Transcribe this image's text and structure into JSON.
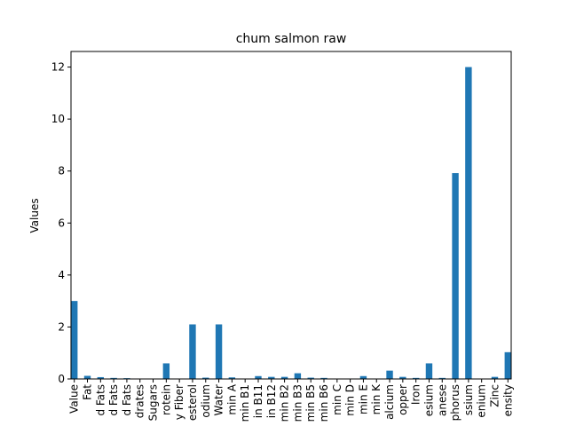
{
  "chart_data": {
    "type": "bar",
    "title": "chum salmon raw",
    "xlabel": "",
    "ylabel": "Values",
    "ylim": [
      0,
      12.6
    ],
    "yticks": [
      0,
      2,
      4,
      6,
      8,
      10,
      12
    ],
    "grid": false,
    "legend": "none",
    "bar_color": "#1f77b4",
    "categories": [
      "Value",
      "Fat",
      "d Fats",
      "d Fats",
      "d Fats",
      "drates",
      "Sugars",
      "rotein",
      "y Fiber",
      "esterol",
      "odium",
      "Water",
      "min A",
      "min B1",
      "in B11",
      "in B12",
      "min B2",
      "min B3",
      "min B5",
      "min B6",
      "min C",
      "min D",
      "min E",
      "min K",
      "alcium",
      "opper",
      "Iron",
      "esium",
      "anese",
      "phorus",
      "ssium",
      "enium",
      "Zinc",
      "ensity"
    ],
    "values": [
      3.0,
      0.12,
      0.07,
      0.04,
      0.03,
      0.0,
      0.0,
      0.6,
      0.0,
      2.1,
      0.05,
      2.1,
      0.06,
      0.0,
      0.11,
      0.08,
      0.08,
      0.22,
      0.05,
      0.04,
      0.0,
      0.0,
      0.11,
      0.0,
      0.32,
      0.08,
      0.04,
      0.6,
      0.04,
      7.92,
      12.0,
      0.0,
      0.08,
      1.03
    ]
  }
}
